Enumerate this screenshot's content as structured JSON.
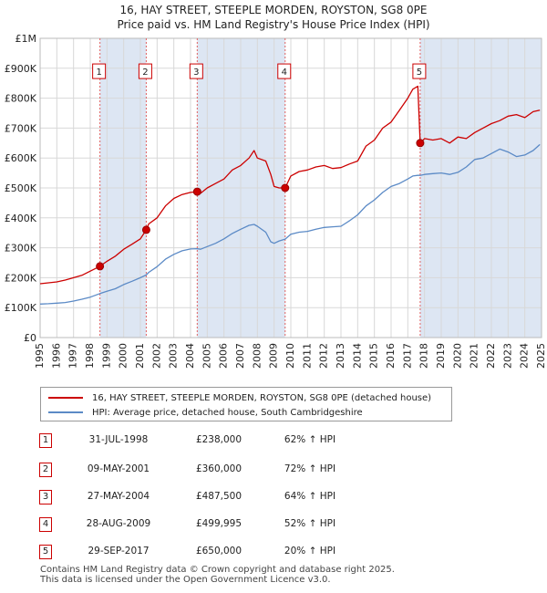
{
  "title_line1": "16, HAY STREET, STEEPLE MORDEN, ROYSTON, SG8 0PE",
  "title_line2": "Price paid vs. HM Land Registry's House Price Index (HPI)",
  "colors": {
    "property": "#cc0000",
    "hpi": "#5b8ac6",
    "shade": "#dde6f3",
    "vline": "#e06060"
  },
  "legend": {
    "property_label": "16, HAY STREET, STEEPLE MORDEN, ROYSTON, SG8 0PE (detached house)",
    "hpi_label": "HPI: Average price, detached house, South Cambridgeshire"
  },
  "sales": [
    {
      "num": "1",
      "date": "31-JUL-1998",
      "price": "£238,000",
      "hpi": "62% ↑ HPI"
    },
    {
      "num": "2",
      "date": "09-MAY-2001",
      "price": "£360,000",
      "hpi": "72% ↑ HPI"
    },
    {
      "num": "3",
      "date": "27-MAY-2004",
      "price": "£487,500",
      "hpi": "64% ↑ HPI"
    },
    {
      "num": "4",
      "date": "28-AUG-2009",
      "price": "£499,995",
      "hpi": "52% ↑ HPI"
    },
    {
      "num": "5",
      "date": "29-SEP-2017",
      "price": "£650,000",
      "hpi": "20% ↑ HPI"
    }
  ],
  "footer_line1": "Contains HM Land Registry data © Crown copyright and database right 2025.",
  "footer_line2": "This data is licensed under the Open Government Licence v3.0.",
  "chart_data": {
    "type": "line",
    "xlim": [
      1995,
      2025
    ],
    "ylim": [
      0,
      1000000
    ],
    "x_ticks": [
      "1995",
      "1996",
      "1997",
      "1998",
      "1999",
      "2000",
      "2001",
      "2002",
      "2003",
      "2004",
      "2005",
      "2006",
      "2007",
      "2008",
      "2009",
      "2010",
      "2011",
      "2012",
      "2013",
      "2014",
      "2015",
      "2016",
      "2017",
      "2018",
      "2019",
      "2020",
      "2021",
      "2022",
      "2023",
      "2024",
      "2025"
    ],
    "y_ticks": [
      {
        "value": 0,
        "label": "£0"
      },
      {
        "value": 100000,
        "label": "£100K"
      },
      {
        "value": 200000,
        "label": "£200K"
      },
      {
        "value": 300000,
        "label": "£300K"
      },
      {
        "value": 400000,
        "label": "£400K"
      },
      {
        "value": 500000,
        "label": "£500K"
      },
      {
        "value": 600000,
        "label": "£600K"
      },
      {
        "value": 700000,
        "label": "£700K"
      },
      {
        "value": 800000,
        "label": "£800K"
      },
      {
        "value": 900000,
        "label": "£900K"
      },
      {
        "value": 1000000,
        "label": "£1M"
      }
    ],
    "grid": true,
    "shaded_periods": [
      [
        1998.58,
        2001.35
      ],
      [
        2004.4,
        2009.66
      ],
      [
        2017.74,
        2025.0
      ]
    ],
    "sale_markers": [
      {
        "label": "1",
        "x": 1998.58,
        "y": 238000
      },
      {
        "label": "2",
        "x": 2001.35,
        "y": 360000
      },
      {
        "label": "3",
        "x": 2004.4,
        "y": 487500
      },
      {
        "label": "4",
        "x": 2009.66,
        "y": 499995
      },
      {
        "label": "5",
        "x": 2017.74,
        "y": 650000
      }
    ],
    "series": [
      {
        "name": "16, HAY STREET, STEEPLE MORDEN, ROYSTON, SG8 0PE (detached house)",
        "x": [
          1995.0,
          1995.5,
          1996.0,
          1996.5,
          1997.0,
          1997.5,
          1998.0,
          1998.58,
          1999.0,
          1999.5,
          2000.0,
          2000.5,
          2001.0,
          2001.35,
          2001.5,
          2002.0,
          2002.5,
          2003.0,
          2003.5,
          2004.0,
          2004.4,
          2004.6,
          2005.0,
          2005.5,
          2006.0,
          2006.5,
          2007.0,
          2007.5,
          2007.8,
          2008.0,
          2008.5,
          2008.8,
          2009.0,
          2009.3,
          2009.66,
          2010.0,
          2010.5,
          2011.0,
          2011.5,
          2012.0,
          2012.5,
          2013.0,
          2013.5,
          2014.0,
          2014.5,
          2015.0,
          2015.5,
          2016.0,
          2016.5,
          2017.0,
          2017.3,
          2017.6,
          2017.74,
          2018.0,
          2018.5,
          2019.0,
          2019.5,
          2020.0,
          2020.5,
          2021.0,
          2021.5,
          2022.0,
          2022.5,
          2023.0,
          2023.5,
          2024.0,
          2024.5,
          2024.9
        ],
        "y": [
          180000,
          183000,
          186000,
          192000,
          200000,
          208000,
          222000,
          238000,
          255000,
          272000,
          295000,
          312000,
          330000,
          360000,
          380000,
          400000,
          440000,
          465000,
          478000,
          485000,
          487500,
          482000,
          500000,
          515000,
          530000,
          560000,
          575000,
          600000,
          625000,
          600000,
          590000,
          545000,
          505000,
          500000,
          499995,
          540000,
          555000,
          560000,
          570000,
          575000,
          565000,
          568000,
          580000,
          590000,
          640000,
          660000,
          700000,
          720000,
          760000,
          800000,
          830000,
          840000,
          650000,
          665000,
          660000,
          665000,
          650000,
          670000,
          665000,
          685000,
          700000,
          715000,
          725000,
          740000,
          745000,
          735000,
          755000,
          760000
        ]
      },
      {
        "name": "HPI: Average price, detached house, South Cambridgeshire",
        "x": [
          1995.0,
          1995.5,
          1996.0,
          1996.5,
          1997.0,
          1997.5,
          1998.0,
          1998.58,
          1999.0,
          1999.5,
          2000.0,
          2000.5,
          2001.0,
          2001.35,
          2001.5,
          2002.0,
          2002.5,
          2003.0,
          2003.5,
          2004.0,
          2004.4,
          2004.6,
          2005.0,
          2005.5,
          2006.0,
          2006.5,
          2007.0,
          2007.5,
          2007.8,
          2008.0,
          2008.5,
          2008.8,
          2009.0,
          2009.3,
          2009.66,
          2010.0,
          2010.5,
          2011.0,
          2011.5,
          2012.0,
          2012.5,
          2013.0,
          2013.5,
          2014.0,
          2014.5,
          2015.0,
          2015.5,
          2016.0,
          2016.5,
          2017.0,
          2017.3,
          2017.6,
          2017.74,
          2018.0,
          2018.5,
          2019.0,
          2019.5,
          2020.0,
          2020.5,
          2021.0,
          2021.5,
          2022.0,
          2022.5,
          2023.0,
          2023.5,
          2024.0,
          2024.5,
          2024.9
        ],
        "y": [
          112000,
          113000,
          115000,
          117000,
          122000,
          128000,
          135000,
          147000,
          155000,
          163000,
          177000,
          188000,
          200000,
          209000,
          218000,
          237000,
          262000,
          278000,
          290000,
          296000,
          297000,
          295000,
          304000,
          315000,
          330000,
          348000,
          362000,
          375000,
          378000,
          372000,
          352000,
          320000,
          315000,
          323000,
          329000,
          345000,
          352000,
          355000,
          362000,
          368000,
          370000,
          372000,
          390000,
          410000,
          440000,
          460000,
          485000,
          505000,
          515000,
          530000,
          540000,
          542000,
          542000,
          545000,
          548000,
          550000,
          545000,
          552000,
          570000,
          595000,
          600000,
          615000,
          630000,
          620000,
          605000,
          610000,
          625000,
          645000
        ]
      }
    ]
  }
}
